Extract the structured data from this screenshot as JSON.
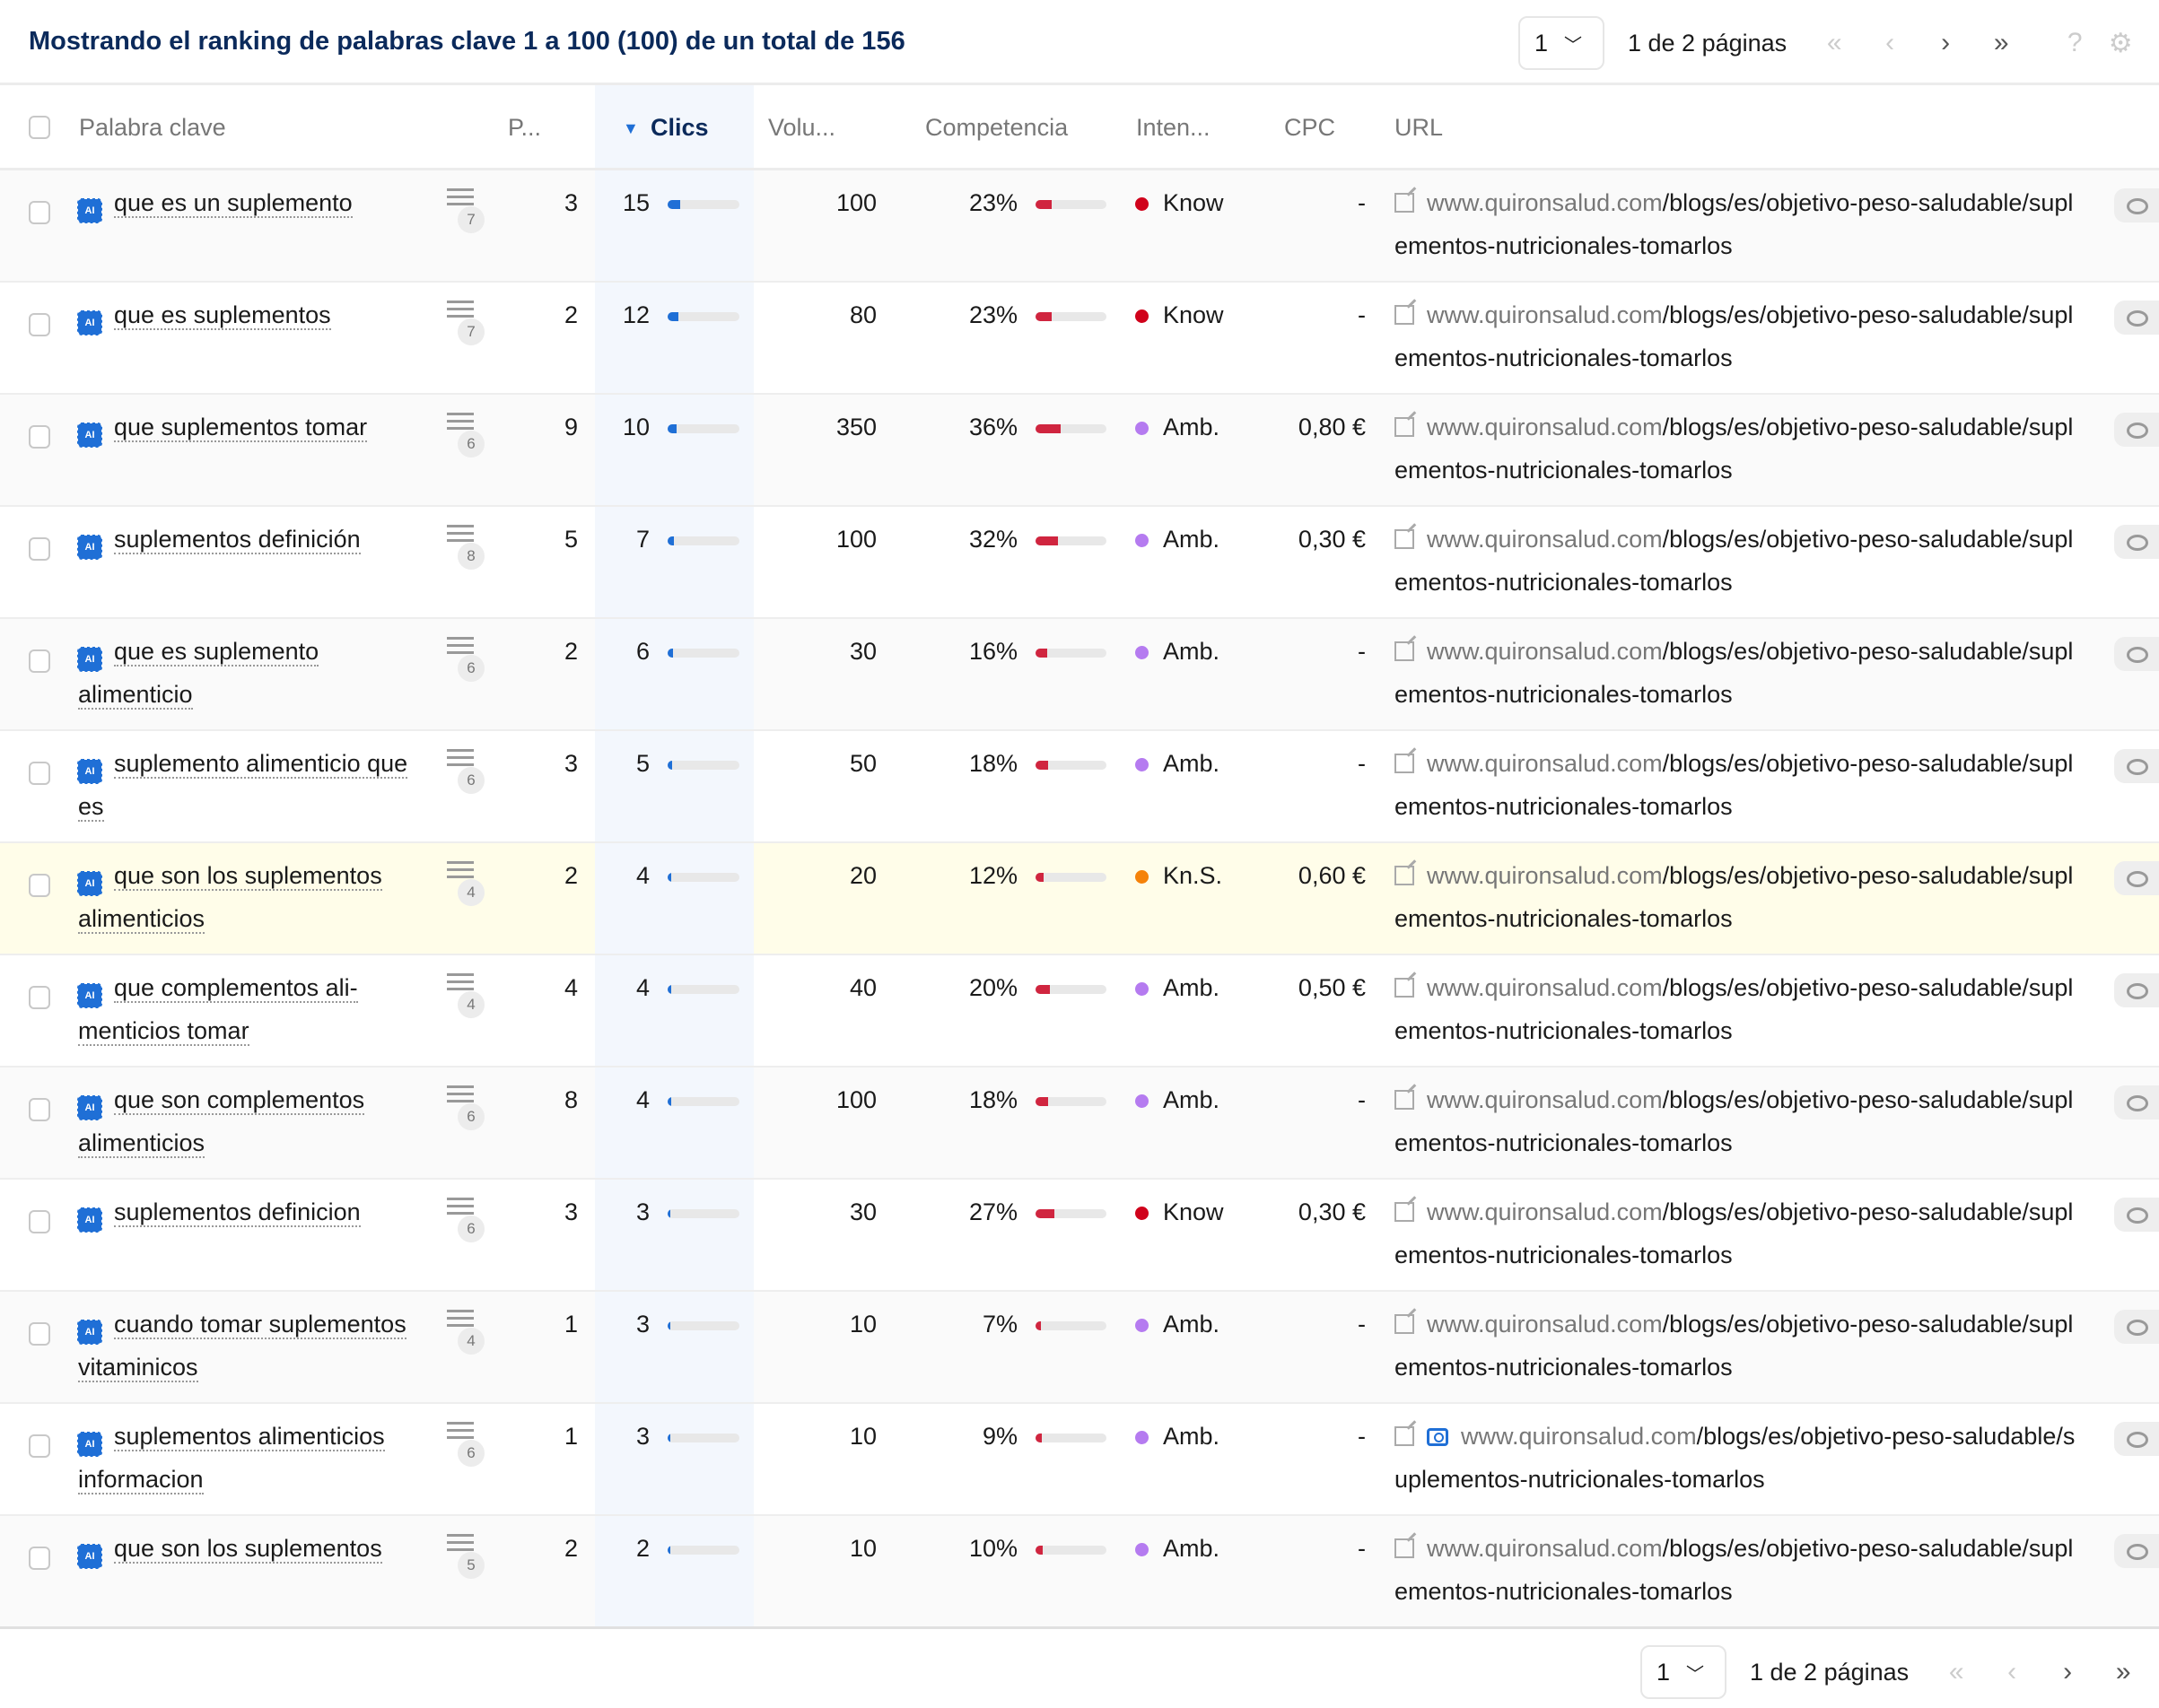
{
  "header": {
    "title": "Mostrando el ranking de palabras clave 1 a 100 (100) de un total de 156"
  },
  "pagination": {
    "page": "1",
    "text": "1 de 2 páginas",
    "first": "«",
    "prev": "‹",
    "next": "›",
    "last": "»",
    "help": "?",
    "settings": "⚙"
  },
  "columns": {
    "keyword": "Palabra clave",
    "position": "P...",
    "clicks": "Clics",
    "volume": "Volu...",
    "competition": "Competencia",
    "intent": "Inten...",
    "cpc": "CPC",
    "url": "URL"
  },
  "colors": {
    "accent": "#1f6fd6",
    "know": "#d0021b",
    "amb": "#b57bf0",
    "kns": "#f5820a",
    "highlight": "#fffde9",
    "competition_bar": "#d0253f"
  },
  "url_domain": "www.quironsalud.com",
  "rows": [
    {
      "keyword": "que es un suplemento",
      "serp": "7",
      "pos": "3",
      "clicks": "15",
      "volume": "100",
      "comp": "23%",
      "intent": "Know",
      "cpc": "-",
      "path": "/blogs/es/objetivo-peso-saludable/suplementos-nutricionales-tomarlos"
    },
    {
      "keyword": "que es suplementos",
      "serp": "7",
      "pos": "2",
      "clicks": "12",
      "volume": "80",
      "comp": "23%",
      "intent": "Know",
      "cpc": "-",
      "path": "/blogs/es/objetivo-peso-saludable/suplementos-nutricionales-tomarlos"
    },
    {
      "keyword": "que suplementos tomar",
      "serp": "6",
      "pos": "9",
      "clicks": "10",
      "volume": "350",
      "comp": "36%",
      "intent": "Amb.",
      "cpc": "0,80 €",
      "path": "/blogs/es/objetivo-peso-saludable/suplementos-nutricionales-tomarlos"
    },
    {
      "keyword": "suplementos definición",
      "serp": "8",
      "pos": "5",
      "clicks": "7",
      "volume": "100",
      "comp": "32%",
      "intent": "Amb.",
      "cpc": "0,30 €",
      "path": "/blogs/es/objetivo-peso-saludable/suplementos-nutricionales-tomarlos"
    },
    {
      "keyword": "que es suplemento alimenticio",
      "serp": "6",
      "pos": "2",
      "clicks": "6",
      "volume": "30",
      "comp": "16%",
      "intent": "Amb.",
      "cpc": "-",
      "path": "/blogs/es/objetivo-peso-saludable/suplementos-nutricionales-tomarlos"
    },
    {
      "keyword": "suplemento alimenticio que es",
      "serp": "6",
      "pos": "3",
      "clicks": "5",
      "volume": "50",
      "comp": "18%",
      "intent": "Amb.",
      "cpc": "-",
      "path": "/blogs/es/objetivo-peso-saludable/suplementos-nutricionales-tomarlos"
    },
    {
      "keyword": "que son los suplementos alimenticios",
      "serp": "4",
      "pos": "2",
      "clicks": "4",
      "volume": "20",
      "comp": "12%",
      "intent": "Kn.S.",
      "cpc": "0,60 €",
      "path": "/blogs/es/objetivo-peso-saludable/suplementos-nutricionales-tomarlos",
      "highlight": true
    },
    {
      "keyword": "que complementos ali­menticios tomar",
      "serp": "4",
      "pos": "4",
      "clicks": "4",
      "volume": "40",
      "comp": "20%",
      "intent": "Amb.",
      "cpc": "0,50 €",
      "path": "/blogs/es/objetivo-peso-saludable/suplementos-nutricionales-tomarlos"
    },
    {
      "keyword": "que son complementos alimenticios",
      "serp": "6",
      "pos": "8",
      "clicks": "4",
      "volume": "100",
      "comp": "18%",
      "intent": "Amb.",
      "cpc": "-",
      "path": "/blogs/es/objetivo-peso-saludable/suplementos-nutricionales-tomarlos"
    },
    {
      "keyword": "suplementos definicion",
      "serp": "6",
      "pos": "3",
      "clicks": "3",
      "volume": "30",
      "comp": "27%",
      "intent": "Know",
      "cpc": "0,30 €",
      "path": "/blogs/es/objetivo-peso-saludable/suplementos-nutricionales-tomarlos"
    },
    {
      "keyword": "cuando tomar suplemen­tos vitaminicos",
      "serp": "4",
      "pos": "1",
      "clicks": "3",
      "volume": "10",
      "comp": "7%",
      "intent": "Amb.",
      "cpc": "-",
      "path": "/blogs/es/objetivo-peso-saludable/suplementos-nutricionales-tomarlos"
    },
    {
      "keyword": "suplementos alimenticios informacion",
      "serp": "6",
      "pos": "1",
      "clicks": "3",
      "volume": "10",
      "comp": "9%",
      "intent": "Amb.",
      "cpc": "-",
      "path": "/blogs/es/objetivo-peso-saludable/suplementos-nutricionales-tomarlos",
      "screenshot": true
    },
    {
      "keyword": "que son los suplementos",
      "serp": "5",
      "pos": "2",
      "clicks": "2",
      "volume": "10",
      "comp": "10%",
      "intent": "Amb.",
      "cpc": "-",
      "path": "/blogs/es/objetivo-peso-saludable/suplementos-nutricionales-tomarlos"
    }
  ]
}
